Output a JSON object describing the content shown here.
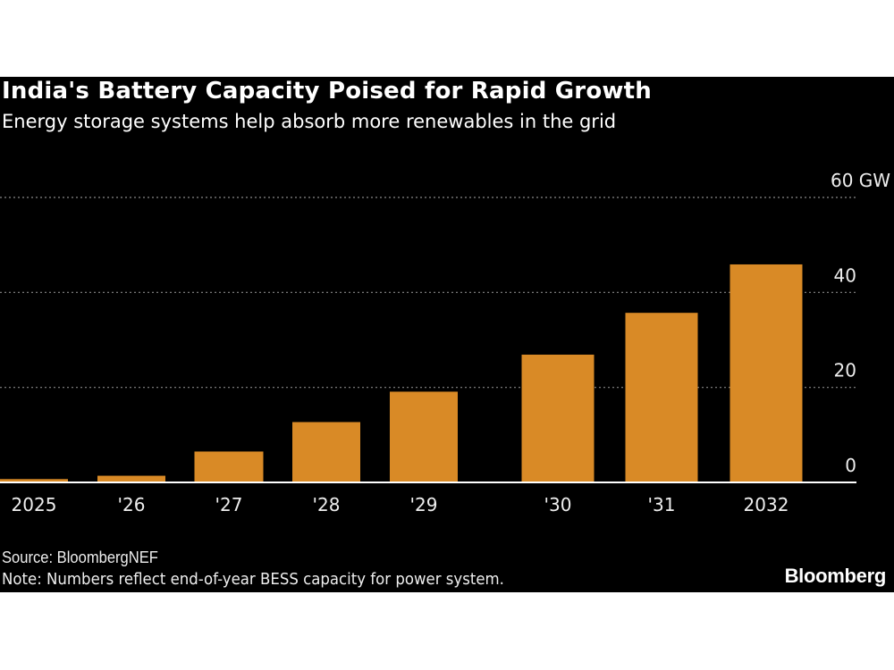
{
  "chart_data": {
    "type": "bar",
    "title": "India's Battery Capacity Poised for Rapid Growth",
    "subtitle": "Energy storage systems help absorb more renewables in the grid",
    "categories": [
      "2025",
      "'26",
      "'27",
      "'28",
      "'29",
      "'30",
      "'31",
      "2032"
    ],
    "values": [
      0.7,
      1.4,
      6.5,
      12.7,
      19.1,
      26.9,
      35.7,
      45.9
    ],
    "ylim": [
      0,
      60
    ],
    "yticks": [
      0,
      20,
      40,
      60
    ],
    "ytick_labels": [
      "0",
      "20",
      "40",
      "60 GW"
    ],
    "yaxis_position": "right",
    "grid": true,
    "bar_color": "#D98A26",
    "background": "#000000",
    "source": "Source: BloombergNEF",
    "note": "Note: Numbers reflect end-of-year BESS capacity for power system."
  },
  "brand": "Bloomberg"
}
